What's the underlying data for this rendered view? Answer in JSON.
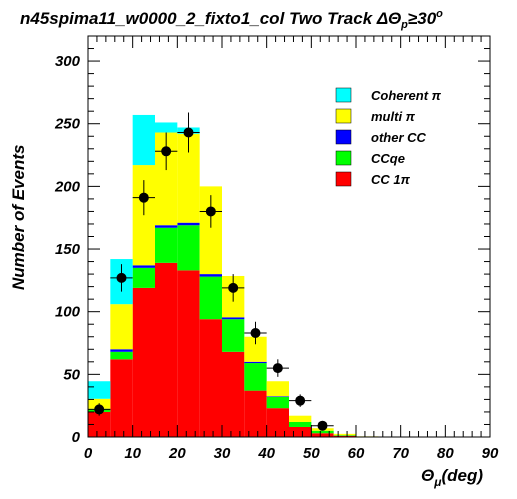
{
  "colors": {
    "coherent": "#00ffff",
    "multi": "#ffff00",
    "other_cc": "#0000ff",
    "ccqe": "#00ff00",
    "cc1pi": "#ff0000",
    "data_points": "#000000"
  },
  "chart_data": {
    "type": "bar",
    "stacked": true,
    "title": "n45spima11_w0000_2_fixto1_col Two Track ΔΘp≥30°",
    "title_parts": {
      "main": "n45spima11_w0000_2_fixto1_col Two Track ",
      "delta_theta": "ΔΘ",
      "subscript": "p",
      "condition": "≥30",
      "superscript": "o"
    },
    "xlabel": "(deg)",
    "xlabel_symbol": "Θ",
    "xlabel_subscript": "μ",
    "ylabel": "Number of Events",
    "xlim": [
      0,
      90
    ],
    "ylim": [
      0,
      320
    ],
    "x_ticks": [
      "0",
      "10",
      "20",
      "30",
      "40",
      "50",
      "60",
      "70",
      "80",
      "90"
    ],
    "y_ticks": [
      "0",
      "50",
      "100",
      "150",
      "200",
      "250",
      "300"
    ],
    "bin_edges": [
      0,
      5,
      10,
      15,
      20,
      25,
      30,
      35,
      40,
      45,
      50,
      55,
      60,
      65,
      70,
      75,
      80,
      85,
      90
    ],
    "series": [
      {
        "name": "CC 1π",
        "color_key": "cc1pi",
        "values": [
          20,
          62,
          119,
          139,
          133,
          94,
          68,
          37,
          23,
          8,
          3,
          1,
          0,
          0,
          0,
          0,
          0,
          0
        ]
      },
      {
        "name": "CCqe",
        "color_key": "ccqe",
        "values": [
          2,
          6,
          16,
          28,
          36,
          34,
          26,
          22,
          9,
          4,
          2,
          0.5,
          0,
          0,
          0,
          0,
          0,
          0
        ]
      },
      {
        "name": "other CC",
        "color_key": "other_cc",
        "values": [
          0.5,
          2,
          2,
          2,
          2,
          2,
          1.5,
          1,
          0.5,
          0,
          0,
          0,
          0,
          0,
          0,
          0,
          0,
          0
        ]
      },
      {
        "name": "multi π",
        "color_key": "multi",
        "values": [
          8,
          36,
          80,
          74,
          71,
          70,
          33,
          20,
          12,
          5,
          2,
          1,
          0.5,
          0,
          0,
          0,
          0,
          0
        ]
      },
      {
        "name": "Coherent π",
        "color_key": "coherent",
        "values": [
          14,
          36,
          40,
          8,
          5,
          0,
          0,
          0,
          0,
          0,
          0,
          0,
          0,
          0,
          0,
          0,
          0,
          0
        ]
      }
    ],
    "data_points": {
      "x": [
        2.5,
        7.5,
        12.5,
        17.5,
        22.5,
        27.5,
        32.5,
        37.5,
        42.5,
        47.5,
        52.5
      ],
      "y": [
        22,
        127,
        191,
        228,
        243,
        180,
        119,
        83,
        55,
        29,
        9
      ],
      "yerr": [
        5,
        11,
        14,
        15,
        16,
        13,
        11,
        9,
        7,
        5,
        3
      ]
    },
    "legend": {
      "placement": "top-right",
      "entries": [
        {
          "label": "Coherent π",
          "color_key": "coherent"
        },
        {
          "label": "multi π",
          "color_key": "multi"
        },
        {
          "label": "other CC",
          "color_key": "other_cc"
        },
        {
          "label": "CCqe",
          "color_key": "ccqe"
        },
        {
          "label": "CC 1π",
          "color_key": "cc1pi"
        }
      ]
    },
    "grid": false
  }
}
